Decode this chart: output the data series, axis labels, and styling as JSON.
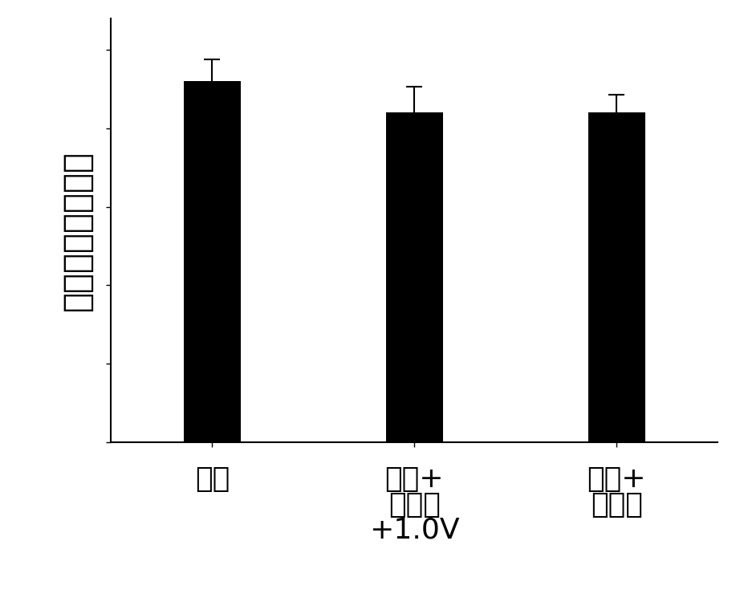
{
  "categories_line1": [
    "细胞",
    "细胞+",
    "细胞+"
  ],
  "categories_line2": [
    "",
    "鲁米诺",
    "鲁米诺"
  ],
  "categories_line3": [
    "",
    "+1.0V",
    ""
  ],
  "values": [
    0.92,
    0.84,
    0.84
  ],
  "errors": [
    0.055,
    0.065,
    0.045
  ],
  "bar_color": "#000000",
  "background_color": "#ffffff",
  "ylabel": "细胞内钙离子浓度",
  "ylim": [
    0,
    1.08
  ],
  "bar_width": 0.28,
  "ylabel_fontsize": 30,
  "tick_fontsize": 26,
  "figure_width": 9.22,
  "figure_height": 7.65,
  "dpi": 100,
  "x_positions": [
    0.5,
    1.5,
    2.5
  ],
  "xlim": [
    0,
    3.0
  ]
}
